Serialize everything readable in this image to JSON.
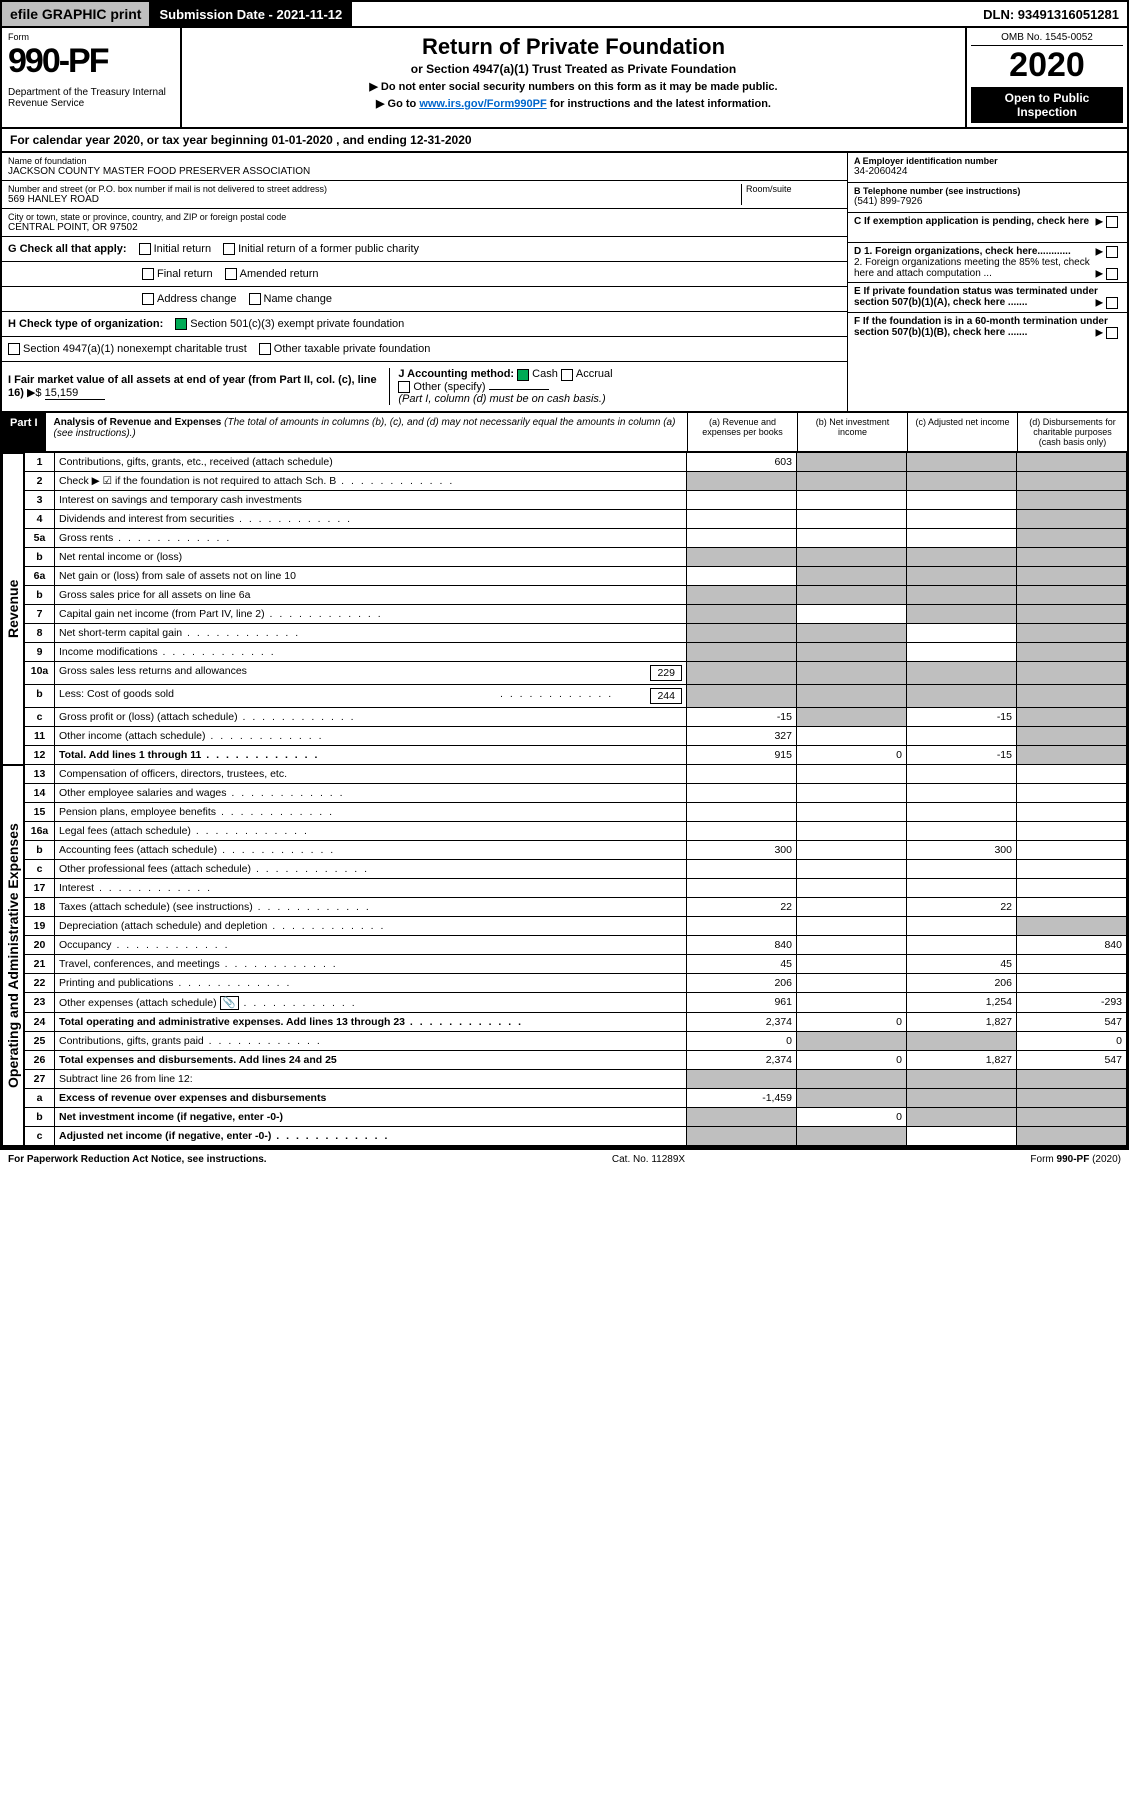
{
  "topbar": {
    "efile": "efile GRAPHIC print",
    "submission": "Submission Date - 2021-11-12",
    "dln": "DLN: 93491316051281"
  },
  "header": {
    "form_label": "Form",
    "form_number": "990-PF",
    "dept": "Department of the Treasury\nInternal Revenue Service",
    "title": "Return of Private Foundation",
    "subtitle": "or Section 4947(a)(1) Trust Treated as Private Foundation",
    "instr1": "▶ Do not enter social security numbers on this form as it may be made public.",
    "instr2": "▶ Go to www.irs.gov/Form990PF for instructions and the latest information.",
    "instr2_link": "www.irs.gov/Form990PF",
    "omb": "OMB No. 1545-0052",
    "year": "2020",
    "open": "Open to Public Inspection"
  },
  "calyear": "For calendar year 2020, or tax year beginning 01-01-2020          , and ending 12-31-2020",
  "name": {
    "label": "Name of foundation",
    "value": "JACKSON COUNTY MASTER FOOD PRESERVER ASSOCIATION"
  },
  "addr": {
    "label": "Number and street (or P.O. box number if mail is not delivered to street address)",
    "value": "569 HANLEY ROAD",
    "room_label": "Room/suite"
  },
  "city": {
    "label": "City or town, state or province, country, and ZIP or foreign postal code",
    "value": "CENTRAL POINT, OR  97502"
  },
  "eid": {
    "label": "A Employer identification number",
    "value": "34-2060424"
  },
  "phone": {
    "label": "B Telephone number (see instructions)",
    "value": "(541) 899-7926"
  },
  "c": "C If exemption application is pending, check here",
  "d1": "D 1. Foreign organizations, check here............",
  "d2": "2. Foreign organizations meeting the 85% test, check here and attach computation ...",
  "e": "E  If private foundation status was terminated under section 507(b)(1)(A), check here .......",
  "f": "F  If the foundation is in a 60-month termination under section 507(b)(1)(B), check here .......",
  "g": {
    "label": "G Check all that apply:",
    "opts": [
      "Initial return",
      "Final return",
      "Address change",
      "Initial return of a former public charity",
      "Amended return",
      "Name change"
    ]
  },
  "h": {
    "label": "H Check type of organization:",
    "opts": [
      "Section 501(c)(3) exempt private foundation",
      "Section 4947(a)(1) nonexempt charitable trust",
      "Other taxable private foundation"
    ]
  },
  "i": {
    "label": "I Fair market value of all assets at end of year (from Part II, col. (c), line 16)",
    "arrow": "▶$",
    "value": "15,159"
  },
  "j": {
    "label": "J Accounting method:",
    "opts": [
      "Cash",
      "Accrual",
      "Other (specify)"
    ],
    "note": "(Part I, column (d) must be on cash basis.)"
  },
  "part1": {
    "title": "Part I",
    "heading": "Analysis of Revenue and Expenses",
    "note": "(The total of amounts in columns (b), (c), and (d) may not necessarily equal the amounts in column (a) (see instructions).)",
    "cols": [
      "(a)  Revenue and expenses per books",
      "(b)  Net investment income",
      "(c)  Adjusted net income",
      "(d)  Disbursements for charitable purposes (cash basis only)"
    ]
  },
  "side_labels": {
    "rev": "Revenue",
    "exp": "Operating and Administrative Expenses"
  },
  "rows": [
    {
      "n": "1",
      "label": "Contributions, gifts, grants, etc., received (attach schedule)",
      "a": "603",
      "b": "grey",
      "c": "grey",
      "d": "grey"
    },
    {
      "n": "2",
      "label": "Check ▶ ☑ if the foundation is not required to attach Sch. B",
      "dots": true,
      "a": "grey",
      "b": "grey",
      "c": "grey",
      "d": "grey"
    },
    {
      "n": "3",
      "label": "Interest on savings and temporary cash investments",
      "a": "",
      "b": "",
      "c": "",
      "d": "grey"
    },
    {
      "n": "4",
      "label": "Dividends and interest from securities",
      "dots": true,
      "a": "",
      "b": "",
      "c": "",
      "d": "grey"
    },
    {
      "n": "5a",
      "label": "Gross rents",
      "dots": true,
      "a": "",
      "b": "",
      "c": "",
      "d": "grey"
    },
    {
      "n": "b",
      "label": "Net rental income or (loss)",
      "input": true,
      "a": "grey",
      "b": "grey",
      "c": "grey",
      "d": "grey"
    },
    {
      "n": "6a",
      "label": "Net gain or (loss) from sale of assets not on line 10",
      "a": "",
      "b": "grey",
      "c": "grey",
      "d": "grey"
    },
    {
      "n": "b",
      "label": "Gross sales price for all assets on line 6a",
      "input": true,
      "a": "grey",
      "b": "grey",
      "c": "grey",
      "d": "grey"
    },
    {
      "n": "7",
      "label": "Capital gain net income (from Part IV, line 2)",
      "dots": true,
      "a": "grey",
      "b": "",
      "c": "grey",
      "d": "grey"
    },
    {
      "n": "8",
      "label": "Net short-term capital gain",
      "dots": true,
      "a": "grey",
      "b": "grey",
      "c": "",
      "d": "grey"
    },
    {
      "n": "9",
      "label": "Income modifications",
      "dots": true,
      "a": "grey",
      "b": "grey",
      "c": "",
      "d": "grey"
    },
    {
      "n": "10a",
      "label": "Gross sales less returns and allowances",
      "inline": "229",
      "a": "grey",
      "b": "grey",
      "c": "grey",
      "d": "grey"
    },
    {
      "n": "b",
      "label": "Less: Cost of goods sold",
      "dots": true,
      "inline": "244",
      "a": "grey",
      "b": "grey",
      "c": "grey",
      "d": "grey"
    },
    {
      "n": "c",
      "label": "Gross profit or (loss) (attach schedule)",
      "dots": true,
      "a": "-15",
      "b": "grey",
      "c": "-15",
      "d": "grey"
    },
    {
      "n": "11",
      "label": "Other income (attach schedule)",
      "dots": true,
      "a": "327",
      "b": "",
      "c": "",
      "d": "grey"
    },
    {
      "n": "12",
      "label": "Total. Add lines 1 through 11",
      "dots": true,
      "bold": true,
      "a": "915",
      "b": "0",
      "c": "-15",
      "d": "grey"
    }
  ],
  "exprows": [
    {
      "n": "13",
      "label": "Compensation of officers, directors, trustees, etc.",
      "a": "",
      "b": "",
      "c": "",
      "d": ""
    },
    {
      "n": "14",
      "label": "Other employee salaries and wages",
      "dots": true,
      "a": "",
      "b": "",
      "c": "",
      "d": ""
    },
    {
      "n": "15",
      "label": "Pension plans, employee benefits",
      "dots": true,
      "a": "",
      "b": "",
      "c": "",
      "d": ""
    },
    {
      "n": "16a",
      "label": "Legal fees (attach schedule)",
      "dots": true,
      "a": "",
      "b": "",
      "c": "",
      "d": ""
    },
    {
      "n": "b",
      "label": "Accounting fees (attach schedule)",
      "dots": true,
      "a": "300",
      "b": "",
      "c": "300",
      "d": ""
    },
    {
      "n": "c",
      "label": "Other professional fees (attach schedule)",
      "dots": true,
      "a": "",
      "b": "",
      "c": "",
      "d": ""
    },
    {
      "n": "17",
      "label": "Interest",
      "dots": true,
      "a": "",
      "b": "",
      "c": "",
      "d": ""
    },
    {
      "n": "18",
      "label": "Taxes (attach schedule) (see instructions)",
      "dots": true,
      "a": "22",
      "b": "",
      "c": "22",
      "d": ""
    },
    {
      "n": "19",
      "label": "Depreciation (attach schedule) and depletion",
      "dots": true,
      "a": "",
      "b": "",
      "c": "",
      "d": "grey"
    },
    {
      "n": "20",
      "label": "Occupancy",
      "dots": true,
      "a": "840",
      "b": "",
      "c": "",
      "d": "840"
    },
    {
      "n": "21",
      "label": "Travel, conferences, and meetings",
      "dots": true,
      "a": "45",
      "b": "",
      "c": "45",
      "d": ""
    },
    {
      "n": "22",
      "label": "Printing and publications",
      "dots": true,
      "a": "206",
      "b": "",
      "c": "206",
      "d": ""
    },
    {
      "n": "23",
      "label": "Other expenses (attach schedule)",
      "dots": true,
      "icon": true,
      "a": "961",
      "b": "",
      "c": "1,254",
      "d": "-293"
    },
    {
      "n": "24",
      "label": "Total operating and administrative expenses. Add lines 13 through 23",
      "dots": true,
      "bold": true,
      "a": "2,374",
      "b": "0",
      "c": "1,827",
      "d": "547"
    },
    {
      "n": "25",
      "label": "Contributions, gifts, grants paid",
      "dots": true,
      "a": "0",
      "b": "grey",
      "c": "grey",
      "d": "0"
    },
    {
      "n": "26",
      "label": "Total expenses and disbursements. Add lines 24 and 25",
      "bold": true,
      "a": "2,374",
      "b": "0",
      "c": "1,827",
      "d": "547"
    },
    {
      "n": "27",
      "label": "Subtract line 26 from line 12:",
      "a": "grey",
      "b": "grey",
      "c": "grey",
      "d": "grey"
    },
    {
      "n": "a",
      "label": "Excess of revenue over expenses and disbursements",
      "bold": true,
      "a": "-1,459",
      "b": "grey",
      "c": "grey",
      "d": "grey"
    },
    {
      "n": "b",
      "label": "Net investment income (if negative, enter -0-)",
      "bold": true,
      "a": "grey",
      "b": "0",
      "c": "grey",
      "d": "grey"
    },
    {
      "n": "c",
      "label": "Adjusted net income (if negative, enter -0-)",
      "dots": true,
      "bold": true,
      "a": "grey",
      "b": "grey",
      "c": "",
      "d": "grey"
    }
  ],
  "footer": {
    "left": "For Paperwork Reduction Act Notice, see instructions.",
    "mid": "Cat. No. 11289X",
    "right": "Form 990-PF (2020)"
  }
}
